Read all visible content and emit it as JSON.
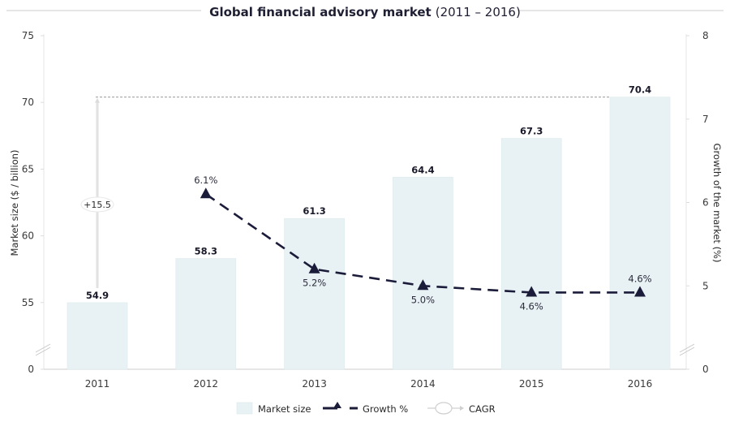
{
  "chart_data": {
    "type": "bar",
    "title": "Global financial advisory market",
    "title_suffix": "(2011 – 2016)",
    "categories": [
      "2011",
      "2012",
      "2013",
      "2014",
      "2015",
      "2016"
    ],
    "series": [
      {
        "name": "Market size",
        "type": "bar",
        "axis": "left",
        "values": [
          54.9,
          58.3,
          61.3,
          64.4,
          67.3,
          70.4
        ],
        "labels": [
          "54.9",
          "58.3",
          "61.3",
          "64.4",
          "67.3",
          "70.4"
        ],
        "color": "#e8f2f4"
      },
      {
        "name": "Growth %",
        "type": "line",
        "axis": "right",
        "style": "dashed",
        "marker": "triangle",
        "values": [
          null,
          6.1,
          5.2,
          5.0,
          4.6,
          4.6
        ],
        "labels": [
          "",
          "6.1%",
          "5.2%",
          "5.0%",
          "4.6%",
          "4.6%"
        ],
        "label_positions": [
          "",
          "above",
          "below",
          "below",
          "below",
          "above"
        ],
        "color": "#1b1b3a"
      }
    ],
    "annotation": {
      "name": "CAGR",
      "label": "+15.5",
      "from_value": 54.9,
      "to_value": 70.4,
      "from_category": "2011",
      "to_category": "2016"
    },
    "ylabel": "Market size ($ / billion)",
    "y2label": "Growth of the market (%)",
    "xlabel": "",
    "y_ticks": [
      0,
      55,
      60,
      65,
      70,
      75
    ],
    "y_tick_labels": [
      "0",
      "55",
      "60",
      "65",
      "70",
      "75"
    ],
    "y2_ticks": [
      0,
      5,
      6,
      7,
      8
    ],
    "y2_tick_labels": [
      "0",
      "5",
      "6",
      "7",
      "8"
    ],
    "ylim": [
      0,
      75
    ],
    "y_axis_break": [
      0,
      50
    ],
    "y2lim": [
      0,
      8
    ],
    "y2_axis_break": [
      0,
      4
    ],
    "grid": false,
    "legend": {
      "position": "bottom",
      "entries": [
        "Market size",
        "Growth %",
        "CAGR"
      ]
    }
  }
}
